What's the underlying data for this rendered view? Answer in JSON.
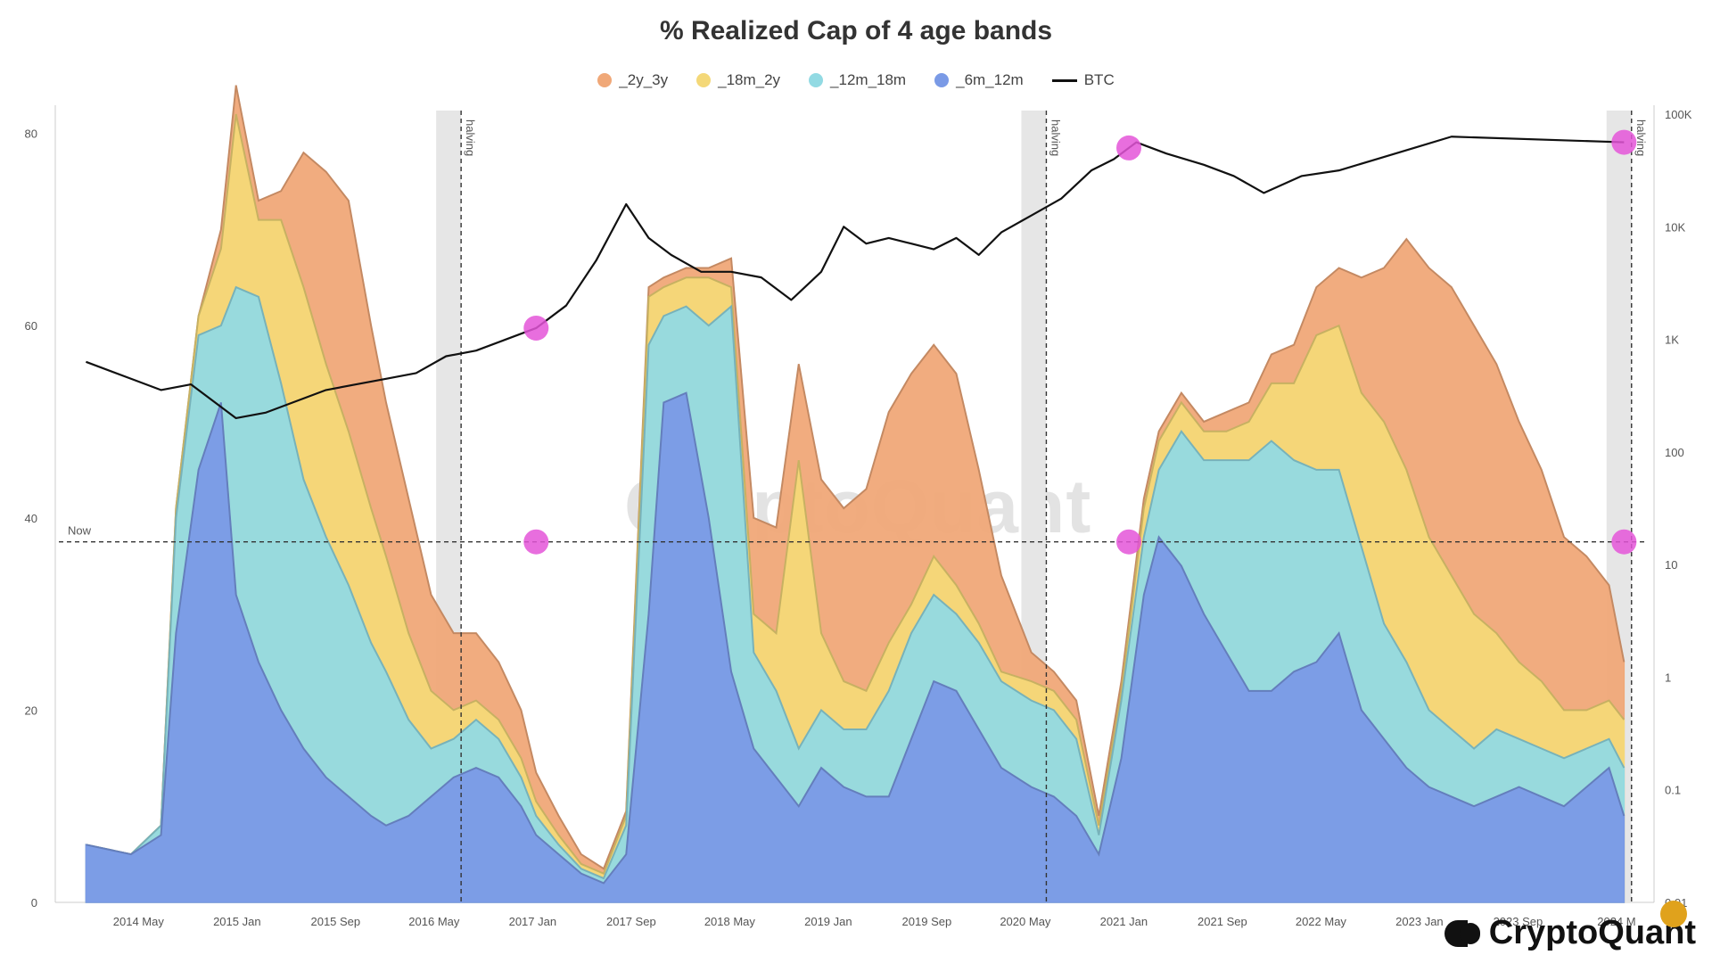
{
  "chart_data": {
    "type": "area",
    "title": "% Realized Cap of 4 age bands",
    "legend_position": "top-center",
    "x_labels": [
      "2014 May",
      "2015 Jan",
      "2015 Sep",
      "2016 May",
      "2017 Jan",
      "2017 Sep",
      "2018 May",
      "2019 Jan",
      "2019 Sep",
      "2020 May",
      "2021 Jan",
      "2021 Sep",
      "2022 May",
      "2023 Jan",
      "2023 Sep",
      "2024 M"
    ],
    "y_left": {
      "ticks": [
        0,
        20,
        40,
        60,
        80
      ],
      "range": [
        0,
        82
      ]
    },
    "y_right": {
      "scale": "log",
      "ticks": [
        "0.01",
        "0.1",
        "1",
        "10",
        "100",
        "1K",
        "10K",
        "100K"
      ],
      "range": [
        0.01,
        100000
      ]
    },
    "grid": true,
    "stacked": true,
    "x": [
      2014.0,
      2014.3,
      2014.5,
      2014.6,
      2014.75,
      2014.9,
      2015.0,
      2015.15,
      2015.3,
      2015.45,
      2015.6,
      2015.75,
      2015.9,
      2016.0,
      2016.15,
      2016.3,
      2016.45,
      2016.6,
      2016.75,
      2016.9,
      2017.0,
      2017.15,
      2017.3,
      2017.45,
      2017.6,
      2017.75,
      2017.85,
      2018.0,
      2018.15,
      2018.3,
      2018.45,
      2018.6,
      2018.75,
      2018.9,
      2019.05,
      2019.2,
      2019.35,
      2019.5,
      2019.65,
      2019.8,
      2019.95,
      2020.1,
      2020.3,
      2020.45,
      2020.6,
      2020.75,
      2020.9,
      2021.05,
      2021.15,
      2021.3,
      2021.45,
      2021.6,
      2021.75,
      2021.9,
      2022.05,
      2022.2,
      2022.35,
      2022.5,
      2022.65,
      2022.8,
      2022.95,
      2023.1,
      2023.25,
      2023.4,
      2023.55,
      2023.7,
      2023.85,
      2024.0,
      2024.15,
      2024.25
    ],
    "series": [
      {
        "name": "_6m_12m",
        "color": "#7a9ae6",
        "values": [
          6,
          5,
          7,
          28,
          45,
          52,
          32,
          25,
          20,
          16,
          13,
          11,
          9,
          8,
          9,
          11,
          13,
          14,
          13,
          10,
          7,
          5,
          3,
          2,
          5,
          30,
          52,
          53,
          40,
          24,
          16,
          13,
          10,
          14,
          12,
          11,
          11,
          17,
          23,
          22,
          18,
          14,
          12,
          11,
          9,
          5,
          15,
          32,
          38,
          35,
          30,
          26,
          22,
          22,
          24,
          25,
          28,
          20,
          17,
          14,
          12,
          11,
          10,
          11,
          12,
          11,
          10,
          12,
          14,
          9
        ]
      },
      {
        "name": "_12m_18m",
        "color": "#92dae3",
        "values": [
          0,
          0,
          1,
          12,
          14,
          8,
          32,
          38,
          34,
          28,
          25,
          22,
          18,
          16,
          10,
          5,
          4,
          5,
          4,
          3,
          2,
          1,
          0.5,
          0.5,
          3,
          28,
          9,
          9,
          20,
          38,
          10,
          9,
          6,
          6,
          6,
          7,
          11,
          11,
          9,
          8,
          9,
          9,
          9,
          9,
          8,
          2,
          6,
          6,
          7,
          14,
          16,
          20,
          24,
          26,
          22,
          20,
          17,
          17,
          12,
          11,
          8,
          7,
          6,
          7,
          5,
          5,
          5,
          4,
          3,
          5
        ]
      },
      {
        "name": "_18m_2y",
        "color": "#f4d878",
        "values": [
          0,
          0,
          0,
          1,
          2,
          8,
          18,
          8,
          17,
          20,
          18,
          16,
          14,
          12,
          9,
          6,
          3,
          2,
          2,
          2,
          1.5,
          1,
          0.5,
          0.5,
          1,
          5,
          3,
          3,
          5,
          2,
          4,
          6,
          30,
          8,
          5,
          4,
          5,
          3,
          4,
          3,
          2,
          1,
          2,
          2,
          2,
          1,
          1,
          3,
          3,
          3,
          3,
          3,
          4,
          6,
          8,
          14,
          15,
          16,
          21,
          20,
          18,
          16,
          14,
          10,
          8,
          7,
          5,
          4,
          4,
          5
        ]
      },
      {
        "name": "_2y_3y",
        "color": "#f0a878",
        "values": [
          0,
          0,
          0,
          0,
          0,
          2,
          3,
          2,
          3,
          14,
          20,
          24,
          19,
          16,
          14,
          10,
          8,
          7,
          6,
          5,
          3,
          2,
          1,
          0.5,
          0.5,
          1,
          1,
          1,
          1,
          3,
          10,
          11,
          10,
          16,
          18,
          21,
          24,
          24,
          22,
          22,
          16,
          10,
          3,
          2,
          2,
          1,
          1,
          1,
          1,
          1,
          1,
          2,
          2,
          3,
          4,
          5,
          6,
          12,
          16,
          24,
          28,
          30,
          30,
          28,
          25,
          22,
          18,
          16,
          12,
          6
        ]
      }
    ],
    "btc_series": {
      "name": "BTC",
      "color": "#111111",
      "log_values": [
        2.8,
        2.65,
        2.55,
        2.6,
        2.4,
        2.3,
        2.35,
        2.45,
        2.55,
        2.6,
        2.65,
        2.7,
        2.85,
        2.9,
        3.0,
        3.1,
        3.3,
        3.7,
        4.2,
        3.9,
        3.75,
        3.6,
        3.6,
        3.55,
        3.35,
        3.6,
        4.0,
        3.85,
        3.9,
        3.85,
        3.8,
        3.9,
        3.75,
        3.95,
        4.1,
        4.25,
        4.5,
        4.6,
        4.75,
        4.65,
        4.55,
        4.45,
        4.3,
        4.45,
        4.5,
        4.6,
        4.7,
        4.8,
        4.75
      ]
    },
    "btc_x": [
      2014.0,
      2014.3,
      2014.5,
      2014.7,
      2014.9,
      2015.0,
      2015.2,
      2015.4,
      2015.6,
      2015.8,
      2016.0,
      2016.2,
      2016.4,
      2016.6,
      2016.8,
      2017.0,
      2017.2,
      2017.4,
      2017.6,
      2017.75,
      2017.9,
      2018.1,
      2018.3,
      2018.5,
      2018.7,
      2018.9,
      2019.05,
      2019.2,
      2019.35,
      2019.5,
      2019.65,
      2019.8,
      2019.95,
      2020.1,
      2020.3,
      2020.5,
      2020.7,
      2020.85,
      2021.0,
      2021.2,
      2021.45,
      2021.65,
      2021.85,
      2022.1,
      2022.35,
      2022.6,
      2022.85,
      2023.1,
      2024.25
    ],
    "annotations": {
      "now_label": "Now",
      "now_value": 37.5,
      "halving_label": "halving",
      "halvings": [
        2016.5,
        2020.4,
        2024.3
      ],
      "markers_on_now_line": [
        2017.0,
        2020.95,
        2024.25
      ],
      "btc_markers": [
        2017.0,
        2020.95,
        2024.25
      ]
    }
  },
  "legend": [
    {
      "label": "_2y_3y",
      "color": "#f0a878",
      "kind": "dot"
    },
    {
      "label": "_18m_2y",
      "color": "#f4d878",
      "kind": "dot"
    },
    {
      "label": "_12m_18m",
      "color": "#92dae3",
      "kind": "dot"
    },
    {
      "label": "_6m_12m",
      "color": "#7a9ae6",
      "kind": "dot"
    },
    {
      "label": "BTC",
      "color": "#111111",
      "kind": "line"
    }
  ],
  "watermark": "CryptoQuant",
  "brand": "CryptoQuant",
  "colors": {
    "marker": "#e455d8",
    "halving_band": "#e6e6e6",
    "grid": "#ececec"
  }
}
